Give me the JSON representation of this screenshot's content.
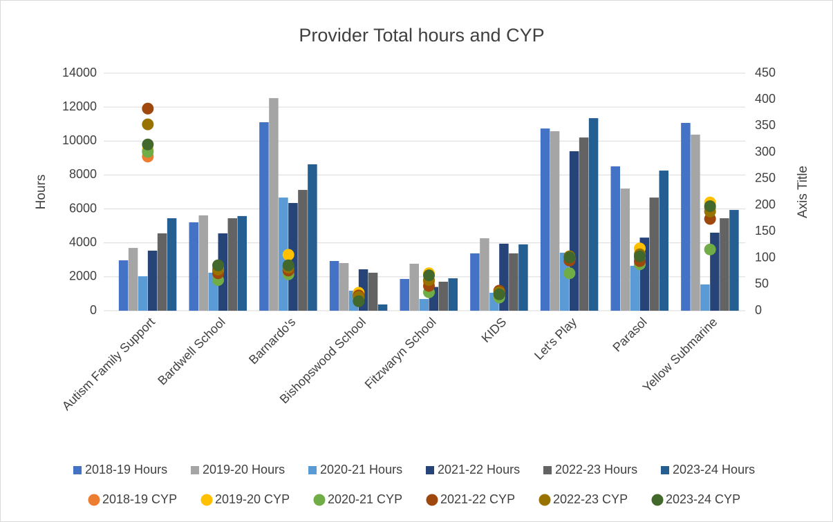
{
  "chart_data": {
    "type": "bar",
    "title": "Provider Total hours and CYP",
    "ylabel": "Hours",
    "y2label": "Axis Title",
    "categories": [
      "Autism Family Support",
      "Bardwell School",
      "Barnardo's",
      "Bishopswood School",
      "Fitzwaryn School",
      "KIDS",
      "Let's Play",
      "Parasol",
      "Yellow Submarine"
    ],
    "ylim": [
      0,
      14000
    ],
    "yticks": [
      0,
      2000,
      4000,
      6000,
      8000,
      10000,
      12000,
      14000
    ],
    "y2lim": [
      0,
      450
    ],
    "y2ticks": [
      0,
      50,
      100,
      150,
      200,
      250,
      300,
      350,
      400,
      450
    ],
    "grid": true,
    "legend": "bottom",
    "series": [
      {
        "name": "2018-19 Hours",
        "type": "bar",
        "color": "#4472c4",
        "values": [
          2970,
          5210,
          11110,
          2930,
          1870,
          3380,
          10740,
          8510,
          11070
        ]
      },
      {
        "name": "2019-20 Hours",
        "type": "bar",
        "color": "#a5a5a5",
        "values": [
          3700,
          5620,
          12530,
          2810,
          2770,
          4270,
          10580,
          7200,
          10380
        ]
      },
      {
        "name": "2020-21 Hours",
        "type": "bar",
        "color": "#5b9bd5",
        "values": [
          2030,
          2240,
          6670,
          1180,
          690,
          1060,
          3420,
          2650,
          1550
        ]
      },
      {
        "name": "2021-22 Hours",
        "type": "bar",
        "color": "#264478",
        "values": [
          3540,
          4560,
          6350,
          2440,
          1400,
          3950,
          9400,
          4310,
          4600
        ]
      },
      {
        "name": "2022-23 Hours",
        "type": "bar",
        "color": "#636363",
        "values": [
          4560,
          5450,
          7120,
          2240,
          1710,
          3380,
          10210,
          6670,
          5450
        ]
      },
      {
        "name": "2023-24 Hours",
        "type": "bar",
        "color": "#255e91",
        "values": [
          5450,
          5580,
          8630,
          370,
          1910,
          3910,
          11350,
          8260,
          5940
        ]
      },
      {
        "name": "2018-19 CYP",
        "type": "scatter",
        "axis": "y2",
        "color": "#ed7d31",
        "values": [
          292,
          75,
          75,
          30,
          55,
          30,
          98,
          100,
          195
        ]
      },
      {
        "name": "2019-20 CYP",
        "type": "scatter",
        "axis": "y2",
        "color": "#ffc000",
        "values": [
          305,
          80,
          106,
          34,
          71,
          30,
          100,
          118,
          205
        ]
      },
      {
        "name": "2020-21 CYP",
        "type": "scatter",
        "axis": "y2",
        "color": "#70ad47",
        "values": [
          301,
          58,
          69,
          24,
          35,
          25,
          71,
          88,
          116
        ]
      },
      {
        "name": "2021-22 CYP",
        "type": "scatter",
        "axis": "y2",
        "color": "#9e480e",
        "values": [
          383,
          71,
          76,
          29,
          47,
          38,
          95,
          94,
          174
        ]
      },
      {
        "name": "2022-23 CYP",
        "type": "scatter",
        "axis": "y2",
        "color": "#997300",
        "values": [
          353,
          78,
          82,
          26,
          58,
          35,
          103,
          107,
          188
        ]
      },
      {
        "name": "2023-24 CYP",
        "type": "scatter",
        "axis": "y2",
        "color": "#43682b",
        "values": [
          315,
          86,
          86,
          18,
          67,
          31,
          101,
          103,
          198
        ]
      }
    ]
  }
}
